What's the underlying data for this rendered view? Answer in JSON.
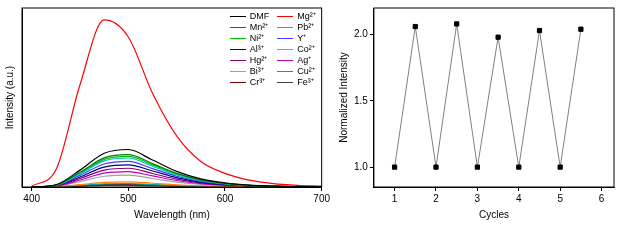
{
  "chart_data": [
    {
      "type": "line",
      "x_label": "Wavelength (nm)",
      "y_label": "Intensity (a.u.)",
      "x": [
        400,
        425,
        450,
        475,
        500,
        525,
        550,
        575,
        600,
        625,
        650,
        675,
        700
      ],
      "xlim": [
        390,
        700
      ],
      "xticks": [
        400,
        500,
        600,
        700
      ],
      "ylim": [
        0,
        1.05
      ],
      "tick_labels": "x",
      "grid": false,
      "legend": "upper right",
      "series": [
        {
          "name": "DMF",
          "color": "#000000",
          "values": [
            0,
            0.013,
            0.099,
            0.198,
            0.22,
            0.158,
            0.092,
            0.048,
            0.024,
            0.011,
            0.006,
            0.002,
            0.001
          ]
        },
        {
          "name": "Mg²⁺",
          "color": "#ff0000",
          "values": [
            0.005,
            0.1,
            0.6,
            0.98,
            0.88,
            0.55,
            0.3,
            0.15,
            0.08,
            0.04,
            0.02,
            0.01,
            0.005
          ]
        },
        {
          "name": "Mn²⁺",
          "color": "#008000",
          "values": [
            0,
            0.011,
            0.086,
            0.171,
            0.19,
            0.137,
            0.08,
            0.042,
            0.021,
            0.01,
            0.005,
            0.002,
            0.001
          ]
        },
        {
          "name": "Pb²⁺",
          "color": "#00bfbf",
          "values": [
            0,
            0.01,
            0.077,
            0.153,
            0.17,
            0.122,
            0.071,
            0.037,
            0.019,
            0.009,
            0.004,
            0.002,
            0.001
          ]
        },
        {
          "name": "Ni²⁺",
          "color": "#00c000",
          "values": [
            0,
            0.011,
            0.081,
            0.162,
            0.18,
            0.13,
            0.076,
            0.04,
            0.02,
            0.009,
            0.005,
            0.002,
            0.001
          ]
        },
        {
          "name": "Y⁺",
          "color": "#4040ff",
          "values": [
            0,
            0.009,
            0.068,
            0.135,
            0.15,
            0.108,
            0.063,
            0.033,
            0.017,
            0.008,
            0.004,
            0.002,
            0.001
          ]
        },
        {
          "name": "Al³⁺",
          "color": "#000080",
          "values": [
            0,
            0.008,
            0.059,
            0.117,
            0.13,
            0.094,
            0.055,
            0.029,
            0.014,
            0.007,
            0.003,
            0.001,
            0.001
          ]
        },
        {
          "name": "Co²⁺",
          "color": "#ff8000",
          "values": [
            0,
            0.002,
            0.014,
            0.027,
            0.03,
            0.022,
            0.013,
            0.007,
            0.003,
            0.002,
            0.001,
            0,
            0
          ]
        },
        {
          "name": "Hg²⁺",
          "color": "#800080",
          "values": [
            0,
            0.007,
            0.05,
            0.099,
            0.11,
            0.079,
            0.046,
            0.024,
            0.012,
            0.006,
            0.003,
            0.001,
            0.001
          ]
        },
        {
          "name": "Ag⁺",
          "color": "#bf00bf",
          "values": [
            0,
            0.005,
            0.041,
            0.081,
            0.09,
            0.065,
            0.038,
            0.02,
            0.01,
            0.005,
            0.002,
            0.001,
            0
          ]
        },
        {
          "name": "Bi³⁺",
          "color": "#a0a0a0",
          "values": [
            0,
            0.004,
            0.032,
            0.063,
            0.07,
            0.05,
            0.029,
            0.015,
            0.008,
            0.004,
            0.002,
            0.001,
            0
          ]
        },
        {
          "name": "Cu²⁺",
          "color": "#00a0a0",
          "values": [
            0,
            0.001,
            0.009,
            0.018,
            0.02,
            0.014,
            0.008,
            0.004,
            0.002,
            0.001,
            0.001,
            0,
            0
          ]
        },
        {
          "name": "Cr³⁺",
          "color": "#800000",
          "values": [
            0,
            0.001,
            0.007,
            0.014,
            0.015,
            0.011,
            0.006,
            0.003,
            0.002,
            0.001,
            0,
            0,
            0
          ]
        },
        {
          "name": "Fe³⁺",
          "color": "#404040",
          "values": [
            0,
            0.001,
            0.005,
            0.009,
            0.01,
            0.007,
            0.004,
            0.002,
            0.001,
            0.001,
            0,
            0,
            0
          ]
        }
      ]
    },
    {
      "type": "line",
      "x_label": "Cycles",
      "y_label": "Normalized Intensity",
      "x": [
        1,
        1.5,
        2,
        2.5,
        3,
        3.5,
        4,
        4.5,
        5,
        5.5
      ],
      "xlim": [
        0.5,
        6.3
      ],
      "xticks": [
        1,
        2,
        3,
        4,
        5,
        6
      ],
      "ylim": [
        0.85,
        2.2
      ],
      "yticks": [
        {
          "value": 1.0,
          "label": "1.0"
        },
        {
          "value": 1.5,
          "label": "1.5"
        },
        {
          "value": 2.0,
          "label": "2.0"
        }
      ],
      "grid": false,
      "series": [
        {
          "color": "#808080",
          "marker": "square",
          "values": [
            1.0,
            2.06,
            1.0,
            2.08,
            1.0,
            1.98,
            1.0,
            2.03,
            1.0,
            2.04
          ]
        }
      ]
    }
  ]
}
